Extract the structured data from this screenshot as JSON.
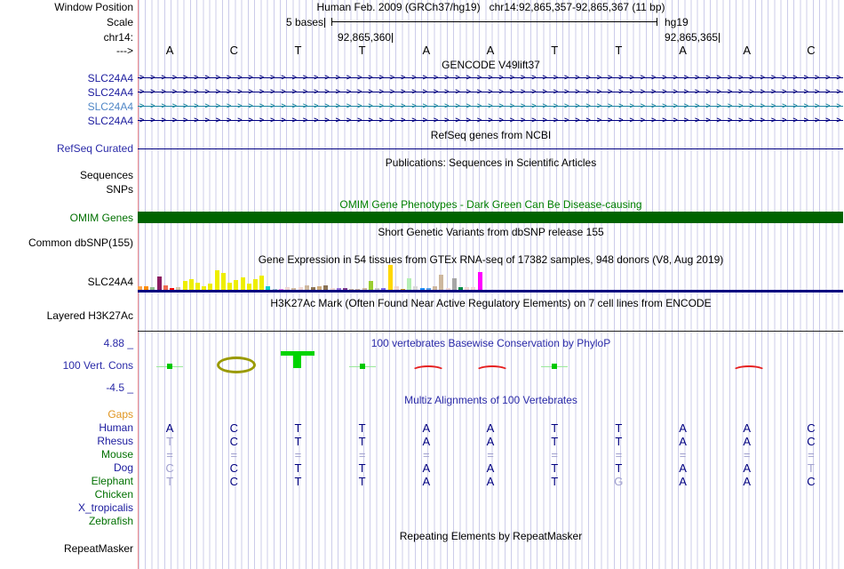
{
  "colors": {
    "navy": "#000080",
    "blue_label": "#2a2aa8",
    "green_label": "#007000",
    "faded_letter": "#9f9fce",
    "grid": "#ccccea",
    "edge": "#f49090"
  },
  "header": {
    "window_position_label": "Window Position",
    "assembly": "Human Feb. 2009 (GRCh37/hg19)",
    "position": "chr14:92,865,357-92,865,367 (11 bp)",
    "scale_label": "Scale",
    "scale_value": "5 bases",
    "genome": "hg19",
    "chrom_label": "chr14:",
    "coord_left": "92,865,360",
    "coord_right": "92,865,365",
    "strand_label": "--->",
    "bases": [
      "A",
      "C",
      "T",
      "T",
      "A",
      "A",
      "T",
      "T",
      "A",
      "A",
      "C"
    ]
  },
  "gencode": {
    "title": "GENCODE V49lift37",
    "genes": [
      {
        "label": "SLC24A4",
        "label_color": "#1b1b9e",
        "line_color": "#000080"
      },
      {
        "label": "SLC24A4",
        "label_color": "#1b1b9e",
        "line_color": "#000080"
      },
      {
        "label": "SLC24A4",
        "label_color": "#4f86c6",
        "line_color": "#1e87a2"
      },
      {
        "label": "SLC24A4",
        "label_color": "#1b1b9e",
        "line_color": "#000080"
      }
    ]
  },
  "refseq": {
    "title": "RefSeq genes from NCBI",
    "label": "RefSeq Curated",
    "label_color": "#2a2aa8",
    "line_color": "#000080"
  },
  "publications": {
    "title": "Publications: Sequences in Scientific Articles",
    "row_labels": [
      "Sequences",
      "SNPs"
    ]
  },
  "omim": {
    "title": "OMIM Gene Phenotypes - Dark Green Can Be Disease-causing",
    "title_color": "#008000",
    "label": "OMIM Genes",
    "label_color": "#007000",
    "bar_color": "#006400"
  },
  "dbsnp": {
    "title": "Short Genetic Variants from dbSNP release 155",
    "label": "Common dbSNP(155)"
  },
  "gtex": {
    "title": "Gene Expression in 54 tissues from GTEx RNA-seq of 17382 samples, 948 donors (V8, Aug 2019)",
    "label": "SLC24A4",
    "axis_color": "#000080",
    "bars": [
      [
        "#FFA54F",
        4
      ],
      [
        "#FF8C00",
        4
      ],
      [
        "#8FBC8F",
        3
      ],
      [
        "#8B1C62",
        15
      ],
      [
        "#EE6A50",
        5
      ],
      [
        "#FF0000",
        2
      ],
      [
        "#D5C6A3",
        3
      ],
      [
        "#EEEE00",
        10
      ],
      [
        "#EEEE00",
        12
      ],
      [
        "#EEEE00",
        8
      ],
      [
        "#EEEE00",
        4
      ],
      [
        "#EEEE00",
        7
      ],
      [
        "#EEEE00",
        22
      ],
      [
        "#EEEE00",
        19
      ],
      [
        "#EEEE00",
        8
      ],
      [
        "#EEEE00",
        11
      ],
      [
        "#EEEE00",
        14
      ],
      [
        "#EEEE00",
        7
      ],
      [
        "#EEEE00",
        12
      ],
      [
        "#EEEE00",
        16
      ],
      [
        "#00CDCD",
        4
      ],
      [
        "#9AC0CD",
        1
      ],
      [
        "#EE82EE",
        1
      ],
      [
        "#EED5D2",
        3
      ],
      [
        "#CDB79E",
        2
      ],
      [
        "#EED5D2",
        3
      ],
      [
        "#CDB79E",
        5
      ],
      [
        "#8B7355",
        3
      ],
      [
        "#CDAA7D",
        4
      ],
      [
        "#8B7355",
        5
      ],
      [
        "#EED5D2",
        2
      ],
      [
        "#9370DB",
        2
      ],
      [
        "#7A378B",
        2
      ],
      [
        "#CDB79E",
        1
      ],
      [
        "#CDB79E",
        1
      ],
      [
        "#CDB79E",
        2
      ],
      [
        "#9ACD32",
        10
      ],
      [
        "#C8C8C8",
        2
      ],
      [
        "#7A67EE",
        2
      ],
      [
        "#FFD700",
        28
      ],
      [
        "#EED5D2",
        4
      ],
      [
        "#CD9B1D",
        1
      ],
      [
        "#B4EEB4",
        13
      ],
      [
        "#D9D9D9",
        4
      ],
      [
        "#1E90FF",
        2
      ],
      [
        "#56A0E8",
        2
      ],
      [
        "#CDB79E",
        4
      ],
      [
        "#CDB79E",
        17
      ],
      [
        "#EED5D2",
        2
      ],
      [
        "#A6A6A6",
        13
      ],
      [
        "#008B45",
        3
      ],
      [
        "#EED5D2",
        3
      ],
      [
        "#EED5D2",
        3
      ],
      [
        "#FF00FF",
        20
      ]
    ]
  },
  "h3k27ac": {
    "title": "H3K27Ac Mark (Often Found Near Active Regulatory Elements) on 7 cell lines from ENCODE",
    "label": "Layered H3K27Ac",
    "line_color": "#222222"
  },
  "conservation": {
    "title": "100 vertebrates Basewise Conservation by PhyloP",
    "label": "100 Vert. Cons",
    "max_label": "4.88 _",
    "min_label": "-4.5 _",
    "dash_color": "#9ae89a",
    "dot_color": "#00c800",
    "arc_color": "#e62020",
    "olive": "#9a9a00",
    "green": "#00d400",
    "marks": [
      {
        "base": 0,
        "type": "dash"
      },
      {
        "base": 1,
        "type": "letterC"
      },
      {
        "base": 2,
        "type": "letterT"
      },
      {
        "base": 3,
        "type": "dash"
      },
      {
        "base": 4,
        "type": "arc"
      },
      {
        "base": 5,
        "type": "arc"
      },
      {
        "base": 6,
        "type": "dash"
      },
      {
        "base": 9,
        "type": "arc"
      }
    ]
  },
  "multiz": {
    "title": "Multiz Alignments of 100 Vertebrates",
    "rows": [
      {
        "name": "Gaps",
        "name_color": "#e09520",
        "letters": [],
        "faded": []
      },
      {
        "name": "Human",
        "name_color": "#1b1b9e",
        "letters": [
          "A",
          "C",
          "T",
          "T",
          "A",
          "A",
          "T",
          "T",
          "A",
          "A",
          "C"
        ],
        "faded": []
      },
      {
        "name": "Rhesus",
        "name_color": "#1b1b9e",
        "letters": [
          "T",
          "C",
          "T",
          "T",
          "A",
          "A",
          "T",
          "T",
          "A",
          "A",
          "C"
        ],
        "faded": [
          0
        ]
      },
      {
        "name": "Mouse",
        "name_color": "#007000",
        "letters": [
          "=",
          "=",
          "=",
          "=",
          "=",
          "=",
          "=",
          "=",
          "=",
          "=",
          "="
        ],
        "faded": [
          0,
          1,
          2,
          3,
          4,
          5,
          6,
          7,
          8,
          9,
          10
        ]
      },
      {
        "name": "Dog",
        "name_color": "#1b1b9e",
        "letters": [
          "C",
          "C",
          "T",
          "T",
          "A",
          "A",
          "T",
          "T",
          "A",
          "A",
          "T"
        ],
        "faded": [
          0,
          10
        ]
      },
      {
        "name": "Elephant",
        "name_color": "#007000",
        "letters": [
          "T",
          "C",
          "T",
          "T",
          "A",
          "A",
          "T",
          "G",
          "A",
          "A",
          "C"
        ],
        "faded": [
          0,
          7
        ]
      },
      {
        "name": "Chicken",
        "name_color": "#007000",
        "letters": [],
        "faded": []
      },
      {
        "name": "X_tropicalis",
        "name_color": "#1b1b9e",
        "letters": [],
        "faded": []
      },
      {
        "name": "Zebrafish",
        "name_color": "#007000",
        "letters": [],
        "faded": []
      }
    ]
  },
  "repeatmasker": {
    "title": "Repeating Elements by RepeatMasker",
    "label": "RepeatMasker"
  }
}
